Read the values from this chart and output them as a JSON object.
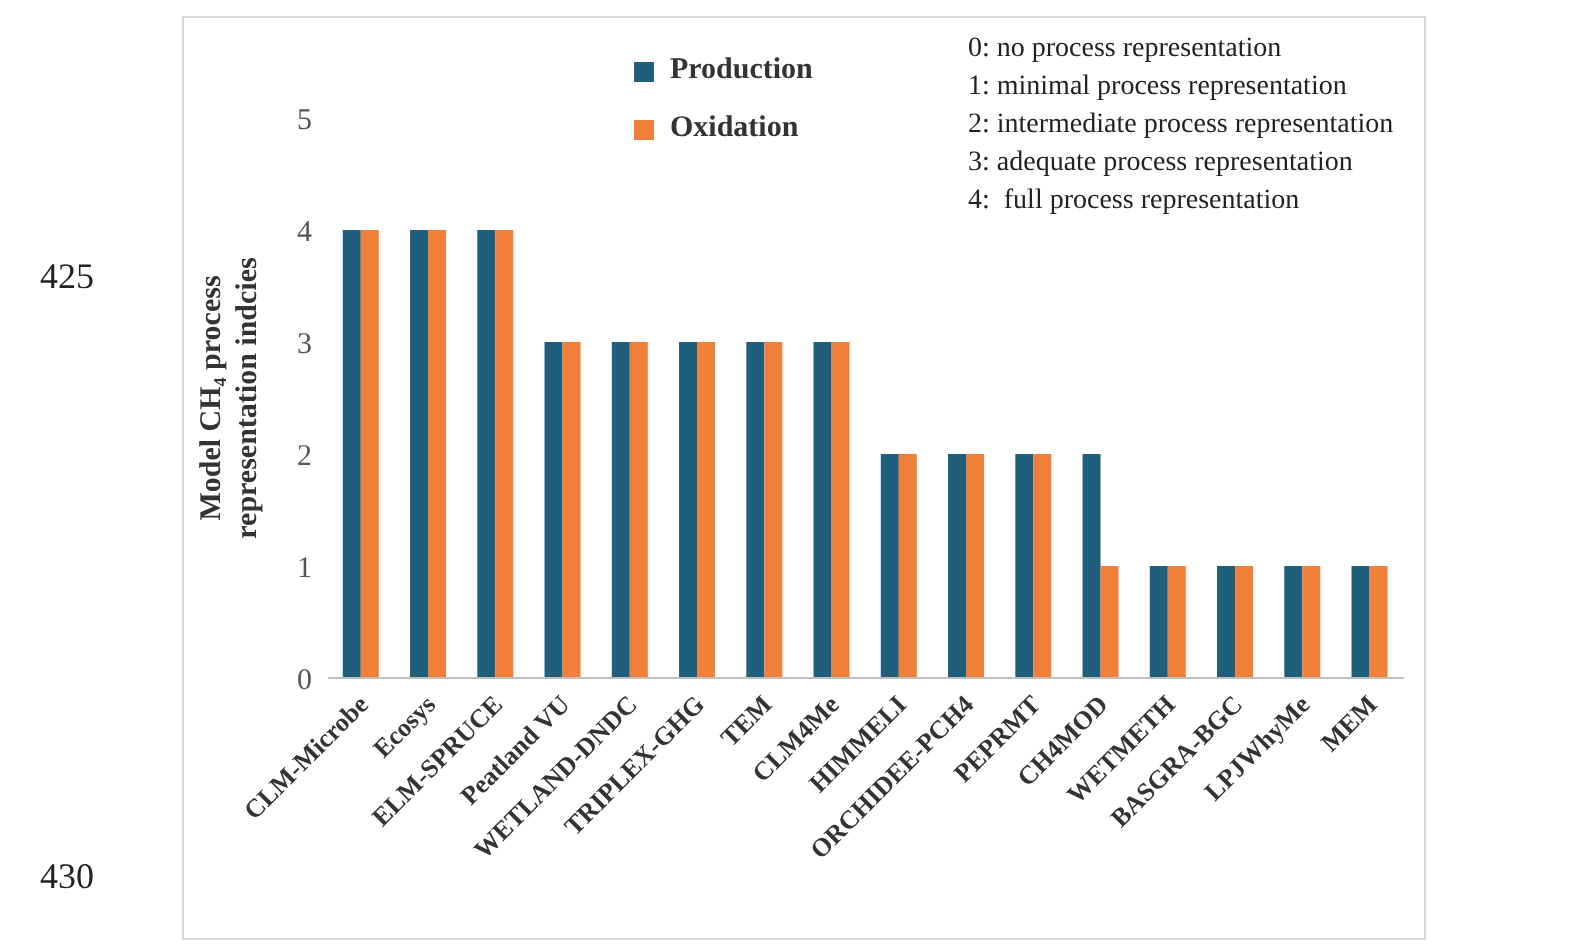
{
  "chart_data": {
    "type": "bar",
    "ylabel": "Model CH₄ process representation indcies",
    "categories": [
      "CLM-Microbe",
      "Ecosys",
      "ELM-SPRUCE",
      "Peatland VU",
      "WETLAND-DNDC",
      "TRIPLEX-GHG",
      "TEM",
      "CLM4Me",
      "HIMMELI",
      "ORCHIDEE-PCH4",
      "PEPRMT",
      "CH4MOD",
      "WETMETH",
      "BASGRA-BGC",
      "LPJWhyMe",
      "MEM"
    ],
    "series": [
      {
        "name": "Production",
        "color": "#1f5f7c",
        "values": [
          4,
          4,
          4,
          3,
          3,
          3,
          3,
          3,
          2,
          2,
          2,
          2,
          1,
          1,
          1,
          1
        ]
      },
      {
        "name": "Oxidation",
        "color": "#f07f3a",
        "values": [
          4,
          4,
          4,
          3,
          3,
          3,
          3,
          3,
          2,
          2,
          2,
          1,
          1,
          1,
          1,
          1
        ]
      }
    ],
    "ylim": [
      0,
      5
    ],
    "yticks": [
      0,
      1,
      2,
      3,
      4,
      5
    ],
    "grid": false,
    "legend": "top",
    "annotations": [
      "0: no process representation",
      "1: minimal process representation",
      "2: intermediate process representation",
      "3: adequate process representation",
      "4:  full process representation",
      "425",
      "430"
    ]
  }
}
